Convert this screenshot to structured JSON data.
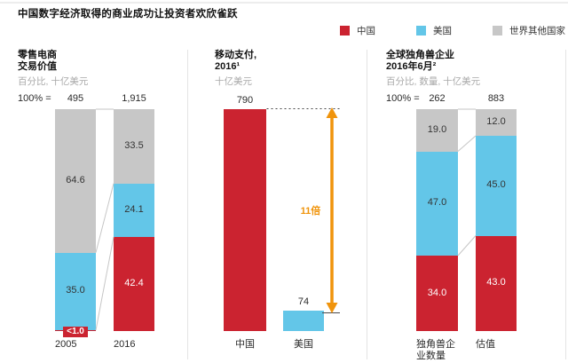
{
  "title": "中国数字经济取得的商业成功让投资者欢欣雀跃",
  "legend": {
    "items": [
      {
        "label": "中国",
        "color": "#CB2330"
      },
      {
        "label": "美国",
        "color": "#63C6E8"
      },
      {
        "label": "世界其他国家",
        "color": "#C7C7C7"
      }
    ]
  },
  "colors": {
    "china_red": "#CB2330",
    "us_blue": "#63C6E8",
    "row_gray": "#C7C7C7",
    "arrow_orange": "#F0940C",
    "label_dark": "#333333",
    "label_light": "#FFFFFF",
    "connector_gray": "#C6C6C6"
  },
  "chart_data": [
    {
      "type": "bar",
      "variant": "stacked-100-percent",
      "title_lines": [
        "零售电商",
        "交易价值"
      ],
      "subtitle": "百分比, 十亿美元",
      "hundred_label": "100% =",
      "categories": [
        "2005",
        "2016"
      ],
      "totals": [
        "495",
        "1,915"
      ],
      "series": [
        {
          "name": "世界其他国家",
          "color_key": "row_gray",
          "values": [
            64.6,
            33.5
          ],
          "labels": [
            "64.6",
            "33.5"
          ]
        },
        {
          "name": "美国",
          "color_key": "us_blue",
          "values": [
            35.0,
            24.1
          ],
          "labels": [
            "35.0",
            "24.1"
          ]
        },
        {
          "name": "中国",
          "color_key": "china_red",
          "values": [
            0.4,
            42.4
          ],
          "labels": [
            "<1.0",
            "42.4"
          ]
        }
      ],
      "ylim": [
        0,
        100
      ],
      "legend_position": "top-right"
    },
    {
      "type": "bar",
      "variant": "absolute",
      "title_lines": [
        "移动支付,",
        "2016¹"
      ],
      "subtitle": "十亿美元",
      "categories": [
        "中国",
        "美国"
      ],
      "values": [
        790,
        74
      ],
      "labels": [
        "790",
        "74"
      ],
      "color_keys": [
        "china_red",
        "us_blue"
      ],
      "axis_max": 790,
      "annotation": {
        "text": "11倍"
      }
    },
    {
      "type": "bar",
      "variant": "stacked-100-percent",
      "title_lines": [
        "全球独角兽企业",
        "2016年6月²"
      ],
      "subtitle": "百分比, 数量, 十亿美元",
      "hundred_label": "100% =",
      "categories": [
        "独角兽企\n业数量",
        "估值"
      ],
      "totals": [
        "262",
        "883"
      ],
      "series": [
        {
          "name": "世界其他国家",
          "color_key": "row_gray",
          "values": [
            19.0,
            12.0
          ],
          "labels": [
            "19.0",
            "12.0"
          ]
        },
        {
          "name": "美国",
          "color_key": "us_blue",
          "values": [
            47.0,
            45.0
          ],
          "labels": [
            "47.0",
            "45.0"
          ]
        },
        {
          "name": "中国",
          "color_key": "china_red",
          "values": [
            34.0,
            43.0
          ],
          "labels": [
            "34.0",
            "43.0"
          ]
        }
      ],
      "ylim": [
        0,
        100
      ]
    }
  ]
}
